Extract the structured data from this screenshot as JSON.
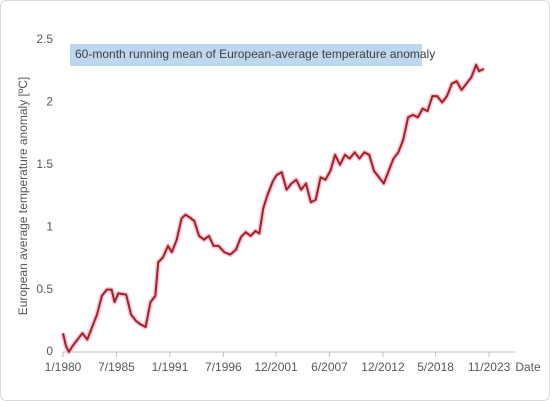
{
  "chart_data": {
    "type": "line",
    "title": "60-month running mean of European-average temperature anomaly",
    "x_label": "Date",
    "y_label": "European average temperature anomaly [ºC]",
    "x": [
      1980.0,
      1980.3,
      1980.6,
      1981.0,
      1981.5,
      1982.0,
      1982.5,
      1983.0,
      1983.5,
      1984.0,
      1984.5,
      1985.0,
      1985.3,
      1985.7,
      1986.5,
      1987.0,
      1987.5,
      1988.0,
      1988.5,
      1989.0,
      1989.5,
      1989.8,
      1990.3,
      1990.8,
      1991.2,
      1991.7,
      1992.2,
      1992.6,
      1993.0,
      1993.5,
      1994.0,
      1994.5,
      1995.0,
      1995.5,
      1996.0,
      1996.6,
      1997.2,
      1997.8,
      1998.3,
      1998.8,
      1999.3,
      1999.8,
      2000.2,
      2000.6,
      2001.0,
      2001.6,
      2002.0,
      2002.5,
      2003.0,
      2003.5,
      2004.0,
      2004.5,
      2005.0,
      2005.5,
      2006.0,
      2006.5,
      2007.0,
      2007.5,
      2008.0,
      2008.5,
      2009.0,
      2009.5,
      2010.0,
      2010.5,
      2011.0,
      2011.5,
      2012.0,
      2012.5,
      2013.0,
      2013.5,
      2014.0,
      2014.5,
      2015.0,
      2015.5,
      2016.0,
      2016.5,
      2017.0,
      2017.5,
      2018.0,
      2018.5,
      2019.0,
      2019.5,
      2020.0,
      2020.5,
      2021.0,
      2021.5,
      2022.0,
      2022.5,
      2022.8,
      2023.3
    ],
    "series": [
      {
        "name": "60-month running mean",
        "color": "#a8201a",
        "values": [
          0.15,
          0.05,
          0.0,
          0.05,
          0.1,
          0.15,
          0.1,
          0.2,
          0.3,
          0.45,
          0.5,
          0.5,
          0.4,
          0.47,
          0.46,
          0.3,
          0.25,
          0.22,
          0.2,
          0.4,
          0.45,
          0.72,
          0.76,
          0.85,
          0.8,
          0.9,
          1.07,
          1.1,
          1.08,
          1.05,
          0.93,
          0.9,
          0.93,
          0.85,
          0.85,
          0.8,
          0.78,
          0.82,
          0.92,
          0.96,
          0.93,
          0.97,
          0.95,
          1.15,
          1.25,
          1.37,
          1.42,
          1.44,
          1.3,
          1.35,
          1.38,
          1.3,
          1.35,
          1.2,
          1.22,
          1.4,
          1.38,
          1.45,
          1.58,
          1.5,
          1.58,
          1.55,
          1.6,
          1.55,
          1.6,
          1.58,
          1.45,
          1.4,
          1.35,
          1.45,
          1.55,
          1.6,
          1.7,
          1.88,
          1.9,
          1.88,
          1.95,
          1.93,
          2.05,
          2.05,
          2.0,
          2.05,
          2.15,
          2.17,
          2.1,
          2.15,
          2.2,
          2.3,
          2.25,
          2.27
        ]
      }
    ],
    "xlim": [
      1980.0,
      2026.5
    ],
    "xticks": [
      {
        "value": 1980.0,
        "label": "1/1980"
      },
      {
        "value": 1985.5,
        "label": "7/1985"
      },
      {
        "value": 1991.0,
        "label": "1/1991"
      },
      {
        "value": 1996.5,
        "label": "7/1996"
      },
      {
        "value": 2001.917,
        "label": "12/2001"
      },
      {
        "value": 2007.417,
        "label": "6/2007"
      },
      {
        "value": 2012.917,
        "label": "12/2012"
      },
      {
        "value": 2018.333,
        "label": "5/2018"
      },
      {
        "value": 2023.833,
        "label": "11/2023"
      }
    ],
    "ylim": [
      0,
      2.5
    ],
    "yticks": [
      0,
      0.5,
      1,
      1.5,
      2,
      2.5
    ],
    "grid": false
  }
}
